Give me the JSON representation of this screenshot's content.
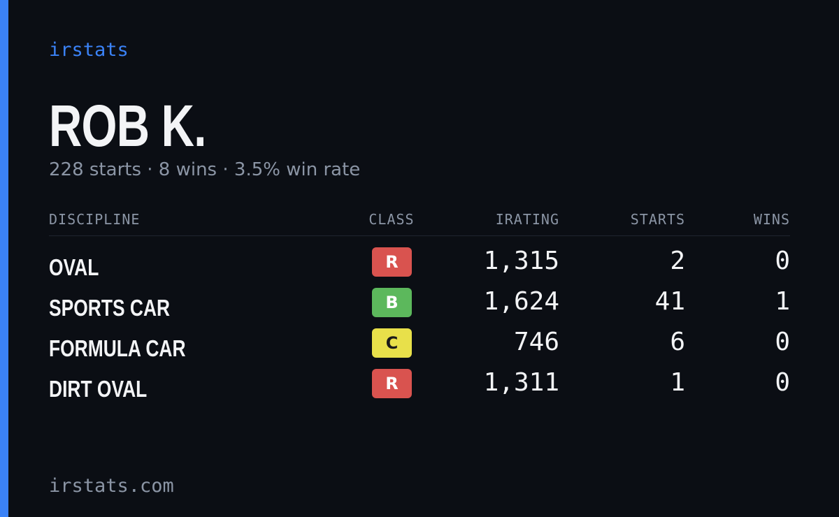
{
  "header": {
    "brand": "irstats",
    "name": "ROB K.",
    "summary": "228 starts · 8 wins · 3.5% win rate"
  },
  "table": {
    "columns": [
      "DISCIPLINE",
      "CLASS",
      "IRATING",
      "STARTS",
      "WINS"
    ],
    "rows": [
      {
        "discipline": "OVAL",
        "class": "R",
        "class_color": "#d9534f",
        "irating": "1,315",
        "starts": "2",
        "wins": "0"
      },
      {
        "discipline": "SPORTS CAR",
        "class": "B",
        "class_color": "#5cb85c",
        "irating": "1,624",
        "starts": "41",
        "wins": "1"
      },
      {
        "discipline": "FORMULA CAR",
        "class": "C",
        "class_color": "#e8e04a",
        "irating": "746",
        "starts": "6",
        "wins": "0"
      },
      {
        "discipline": "DIRT OVAL",
        "class": "R",
        "class_color": "#d9534f",
        "irating": "1,311",
        "starts": "1",
        "wins": "0"
      }
    ]
  },
  "footer": {
    "url": "irstats.com"
  }
}
